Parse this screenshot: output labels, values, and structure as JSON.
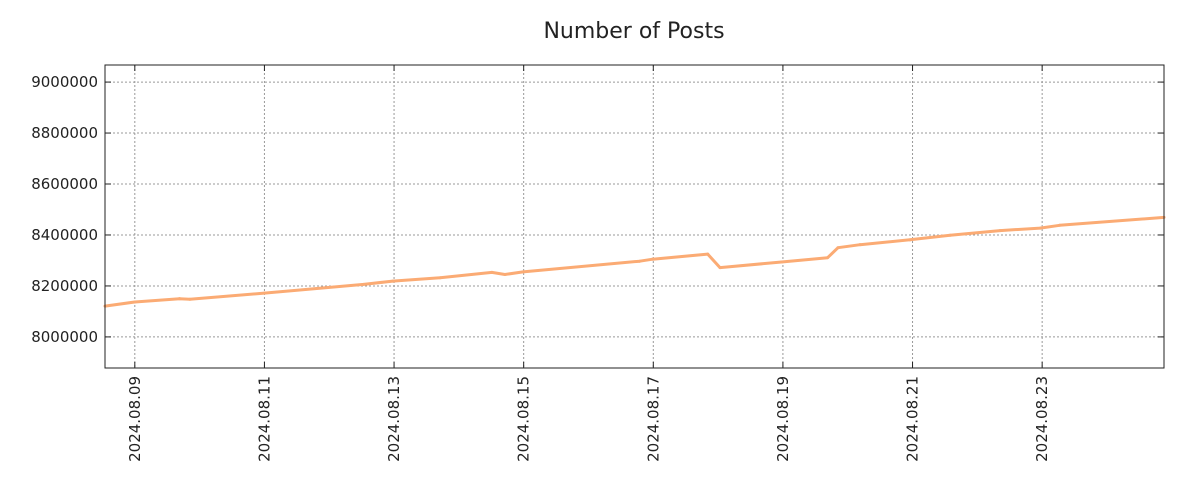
{
  "chart_data": {
    "type": "line",
    "title": "Number of Posts",
    "xlabel": "",
    "ylabel": "",
    "x_unit": "day of August 2024",
    "xlim": [
      8.54,
      24.88
    ],
    "ylim": [
      7878000,
      9067000
    ],
    "grid": true,
    "xticks": [
      {
        "value": 9,
        "label": "2024.08.09"
      },
      {
        "value": 11,
        "label": "2024.08.11"
      },
      {
        "value": 13,
        "label": "2024.08.13"
      },
      {
        "value": 15,
        "label": "2024.08.15"
      },
      {
        "value": 17,
        "label": "2024.08.17"
      },
      {
        "value": 19,
        "label": "2024.08.19"
      },
      {
        "value": 21,
        "label": "2024.08.21"
      },
      {
        "value": 23,
        "label": "2024.08.23"
      }
    ],
    "yticks": [
      {
        "value": 8000000,
        "label": "8000000"
      },
      {
        "value": 8200000,
        "label": "8200000"
      },
      {
        "value": 8400000,
        "label": "8400000"
      },
      {
        "value": 8600000,
        "label": "8600000"
      },
      {
        "value": 8800000,
        "label": "8800000"
      },
      {
        "value": 9000000,
        "label": "9000000"
      }
    ],
    "series": [
      {
        "name": "Number of Posts",
        "color": "#fbab74",
        "x": [
          8.54,
          9.0,
          9.69,
          9.85,
          11.0,
          12.53,
          12.98,
          13.71,
          14.51,
          14.71,
          14.99,
          16.79,
          16.99,
          17.84,
          18.03,
          18.98,
          19.69,
          19.85,
          20.19,
          20.96,
          21.58,
          22.35,
          22.97,
          23.27,
          24.88
        ],
        "y": [
          8121000,
          8137000,
          8150000,
          8148000,
          8172000,
          8206000,
          8219000,
          8232000,
          8253000,
          8245000,
          8255000,
          8297000,
          8305000,
          8325000,
          8272000,
          8294000,
          8311000,
          8350000,
          8362000,
          8381000,
          8399000,
          8417000,
          8427000,
          8438000,
          8469000
        ]
      }
    ]
  }
}
